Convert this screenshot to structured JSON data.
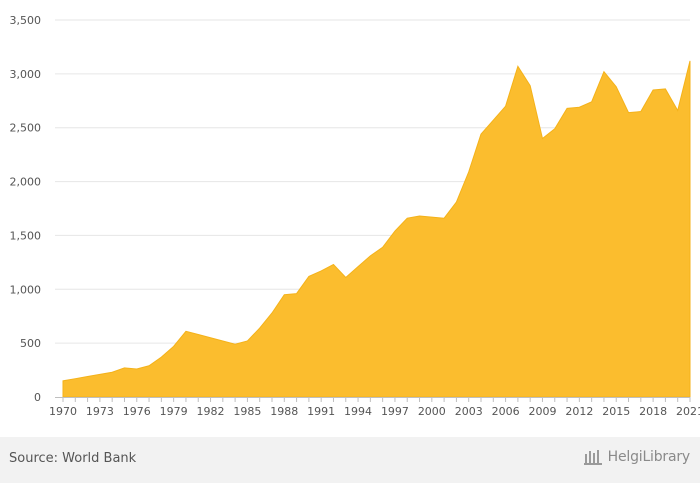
{
  "chart_data": {
    "type": "area",
    "title": "",
    "xlabel": "",
    "ylabel": "",
    "color": "#FBBD2E",
    "grid": true,
    "legend": "none",
    "xlim": [
      1970,
      2021
    ],
    "ylim": [
      0,
      3500
    ],
    "y_ticks": [
      "0",
      "500",
      "1,000",
      "1,500",
      "2,000",
      "2,500",
      "3,000",
      "3,500"
    ],
    "x_ticks": [
      "1970",
      "1973",
      "1976",
      "1979",
      "1982",
      "1985",
      "1988",
      "1991",
      "1994",
      "1997",
      "2000",
      "2003",
      "2006",
      "2009",
      "2012",
      "2015",
      "2018",
      "2021"
    ],
    "x": [
      1970,
      1971,
      1972,
      1973,
      1974,
      1975,
      1976,
      1977,
      1978,
      1979,
      1980,
      1981,
      1982,
      1983,
      1984,
      1985,
      1986,
      1987,
      1988,
      1989,
      1990,
      1991,
      1992,
      1993,
      1994,
      1995,
      1996,
      1997,
      1998,
      1999,
      2000,
      2001,
      2002,
      2003,
      2004,
      2005,
      2006,
      2007,
      2008,
      2009,
      2010,
      2011,
      2012,
      2013,
      2014,
      2015,
      2016,
      2017,
      2018,
      2019,
      2020,
      2021
    ],
    "values": [
      150,
      170,
      190,
      210,
      230,
      270,
      260,
      290,
      370,
      470,
      610,
      580,
      550,
      520,
      490,
      520,
      640,
      780,
      950,
      960,
      1120,
      1170,
      1230,
      1110,
      1210,
      1310,
      1390,
      1540,
      1660,
      1680,
      1670,
      1660,
      1810,
      2090,
      2440,
      2570,
      2700,
      3070,
      2890,
      2400,
      2490,
      2680,
      2690,
      2740,
      3020,
      2880,
      2640,
      2650,
      2850,
      2860,
      2660,
      3120
    ]
  },
  "footer": {
    "source": "Source: World Bank",
    "brand": "HelgiLibrary"
  },
  "colors": {
    "area": "#FBBD2E",
    "grid": "#e6e6e6",
    "footer_bg": "#f2f2f2"
  }
}
